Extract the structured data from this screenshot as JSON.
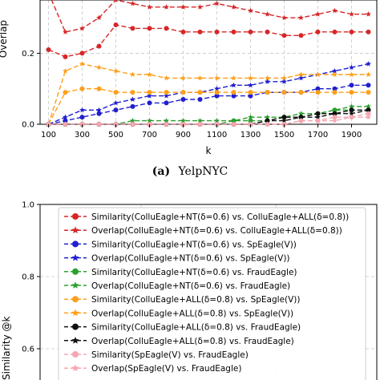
{
  "panel_a": {
    "ylabel_visible_part": "Overlap",
    "xlabel": "k",
    "caption_label": "(a)",
    "caption_text": "YelpNYC",
    "x_ticks": [
      "100",
      "300",
      "500",
      "700",
      "900",
      "1100",
      "1300",
      "1500",
      "1700",
      "1900"
    ],
    "y_ticks": [
      "0.0",
      "0.2"
    ]
  },
  "panel_b": {
    "ylabel_visible_part": "Similarity @k",
    "y_ticks": [
      "0.6",
      "0.8",
      "1.0"
    ]
  },
  "chart_data": [
    {
      "type": "line",
      "panel": "a",
      "xlabel": "k",
      "ylabel": "Overlap",
      "xlim": [
        50,
        2050
      ],
      "ylim": [
        0,
        0.35
      ],
      "grid": true,
      "x": [
        100,
        200,
        300,
        400,
        500,
        600,
        700,
        800,
        900,
        1000,
        1100,
        1200,
        1300,
        1400,
        1500,
        1600,
        1700,
        1800,
        1900,
        2000
      ],
      "series": [
        {
          "color": "#d62728",
          "marker": "circle",
          "dash": "6,3",
          "values": [
            0.21,
            0.19,
            0.2,
            0.22,
            0.28,
            0.27,
            0.27,
            0.27,
            0.26,
            0.26,
            0.26,
            0.26,
            0.26,
            0.26,
            0.25,
            0.25,
            0.26,
            0.26,
            0.26,
            0.26
          ]
        },
        {
          "color": "#d62728",
          "marker": "star",
          "dash": "6,3",
          "values": [
            0.37,
            0.26,
            0.27,
            0.3,
            0.35,
            0.34,
            0.33,
            0.33,
            0.33,
            0.33,
            0.34,
            0.33,
            0.32,
            0.31,
            0.3,
            0.3,
            0.31,
            0.32,
            0.31,
            0.31
          ]
        },
        {
          "color": "#1f1fd0",
          "marker": "circle",
          "dash": "6,3",
          "values": [
            0.0,
            0.01,
            0.02,
            0.03,
            0.04,
            0.05,
            0.06,
            0.06,
            0.07,
            0.07,
            0.08,
            0.08,
            0.08,
            0.09,
            0.09,
            0.09,
            0.1,
            0.1,
            0.11,
            0.11
          ]
        },
        {
          "color": "#1f1fd0",
          "marker": "star",
          "dash": "6,3",
          "values": [
            0.0,
            0.02,
            0.04,
            0.04,
            0.06,
            0.07,
            0.08,
            0.08,
            0.09,
            0.09,
            0.1,
            0.11,
            0.11,
            0.12,
            0.12,
            0.13,
            0.14,
            0.15,
            0.16,
            0.17
          ]
        },
        {
          "color": "#2ca02c",
          "marker": "circle",
          "dash": "6,3",
          "values": [
            0.0,
            0.0,
            0.0,
            0.0,
            0.0,
            0.0,
            0.0,
            0.0,
            0.0,
            0.0,
            0.0,
            0.01,
            0.01,
            0.01,
            0.02,
            0.02,
            0.03,
            0.04,
            0.04,
            0.04
          ]
        },
        {
          "color": "#2ca02c",
          "marker": "star",
          "dash": "6,3",
          "values": [
            0.0,
            0.0,
            0.0,
            0.0,
            0.0,
            0.01,
            0.01,
            0.01,
            0.01,
            0.01,
            0.01,
            0.01,
            0.02,
            0.02,
            0.02,
            0.03,
            0.03,
            0.04,
            0.05,
            0.05
          ]
        },
        {
          "color": "#ff9f1a",
          "marker": "circle",
          "dash": "6,3",
          "values": [
            0.0,
            0.09,
            0.1,
            0.1,
            0.09,
            0.09,
            0.09,
            0.09,
            0.09,
            0.09,
            0.09,
            0.09,
            0.09,
            0.09,
            0.09,
            0.09,
            0.09,
            0.09,
            0.09,
            0.09
          ]
        },
        {
          "color": "#ff9f1a",
          "marker": "star",
          "dash": "6,3",
          "values": [
            0.0,
            0.15,
            0.17,
            0.16,
            0.15,
            0.14,
            0.14,
            0.13,
            0.13,
            0.13,
            0.13,
            0.13,
            0.13,
            0.13,
            0.13,
            0.14,
            0.14,
            0.14,
            0.14,
            0.14
          ]
        },
        {
          "color": "#111111",
          "marker": "circle",
          "dash": "6,3",
          "values": [
            0.0,
            0.0,
            0.0,
            0.0,
            0.0,
            0.0,
            0.0,
            0.0,
            0.0,
            0.0,
            0.0,
            0.0,
            0.0,
            0.01,
            0.02,
            0.02,
            0.03,
            0.03,
            0.04,
            0.04
          ]
        },
        {
          "color": "#111111",
          "marker": "star",
          "dash": "6,3",
          "values": [
            0.0,
            0.0,
            0.0,
            0.0,
            0.0,
            0.0,
            0.0,
            0.0,
            0.0,
            0.0,
            0.0,
            0.0,
            0.0,
            0.01,
            0.01,
            0.02,
            0.02,
            0.03,
            0.03,
            0.04
          ]
        },
        {
          "color": "#f4a6b0",
          "marker": "circle",
          "dash": "6,3",
          "values": [
            0.0,
            0.0,
            0.0,
            0.0,
            0.0,
            0.0,
            0.0,
            0.0,
            0.0,
            0.0,
            0.0,
            0.0,
            0.0,
            0.0,
            0.0,
            0.01,
            0.01,
            0.02,
            0.02,
            0.03
          ]
        },
        {
          "color": "#f4a6b0",
          "marker": "star",
          "dash": "6,3",
          "values": [
            0.0,
            0.0,
            0.0,
            0.0,
            0.0,
            0.0,
            0.0,
            0.0,
            0.0,
            0.0,
            0.0,
            0.0,
            0.0,
            0.0,
            0.0,
            0.01,
            0.01,
            0.01,
            0.02,
            0.02
          ]
        }
      ]
    },
    {
      "type": "line",
      "panel": "b",
      "ylabel": "Similarity @k",
      "ylim": [
        0.5,
        1.0
      ],
      "grid": true,
      "legend_position": "upper-left",
      "legend": [
        {
          "label": "Similarity(ColluEagle+NT(δ=0.6) vs. ColluEagle+ALL(δ=0.8))",
          "color": "#d62728",
          "marker": "circle"
        },
        {
          "label": "Overlap(ColluEagle+NT(δ=0.6) vs. ColluEagle+ALL(δ=0.8))",
          "color": "#d62728",
          "marker": "star"
        },
        {
          "label": "Similarity(ColluEagle+NT(δ=0.6) vs. SpEagle(V))",
          "color": "#1f1fd0",
          "marker": "circle"
        },
        {
          "label": "Overlap(ColluEagle+NT(δ=0.6) vs. SpEagle(V))",
          "color": "#1f1fd0",
          "marker": "star"
        },
        {
          "label": "Similarity(ColluEagle+NT(δ=0.6) vs. FraudEagle)",
          "color": "#2ca02c",
          "marker": "circle"
        },
        {
          "label": "Overlap(ColluEagle+NT(δ=0.6) vs. FraudEagle)",
          "color": "#2ca02c",
          "marker": "star"
        },
        {
          "label": "Similarity(ColluEagle+ALL(δ=0.8) vs. SpEagle(V))",
          "color": "#ff9f1a",
          "marker": "circle"
        },
        {
          "label": "Overlap(ColluEagle+ALL(δ=0.8) vs. SpEagle(V))",
          "color": "#ff9f1a",
          "marker": "star"
        },
        {
          "label": "Similarity(ColluEagle+ALL(δ=0.8) vs. FraudEagle)",
          "color": "#111111",
          "marker": "circle"
        },
        {
          "label": "Overlap(ColluEagle+ALL(δ=0.8) vs. FraudEagle)",
          "color": "#111111",
          "marker": "star"
        },
        {
          "label": "Similarity(SpEagle(V) vs. FraudEagle)",
          "color": "#f4a6b0",
          "marker": "circle"
        },
        {
          "label": "Overlap(SpEagle(V) vs. FraudEagle)",
          "color": "#f4a6b0",
          "marker": "star"
        }
      ]
    }
  ]
}
